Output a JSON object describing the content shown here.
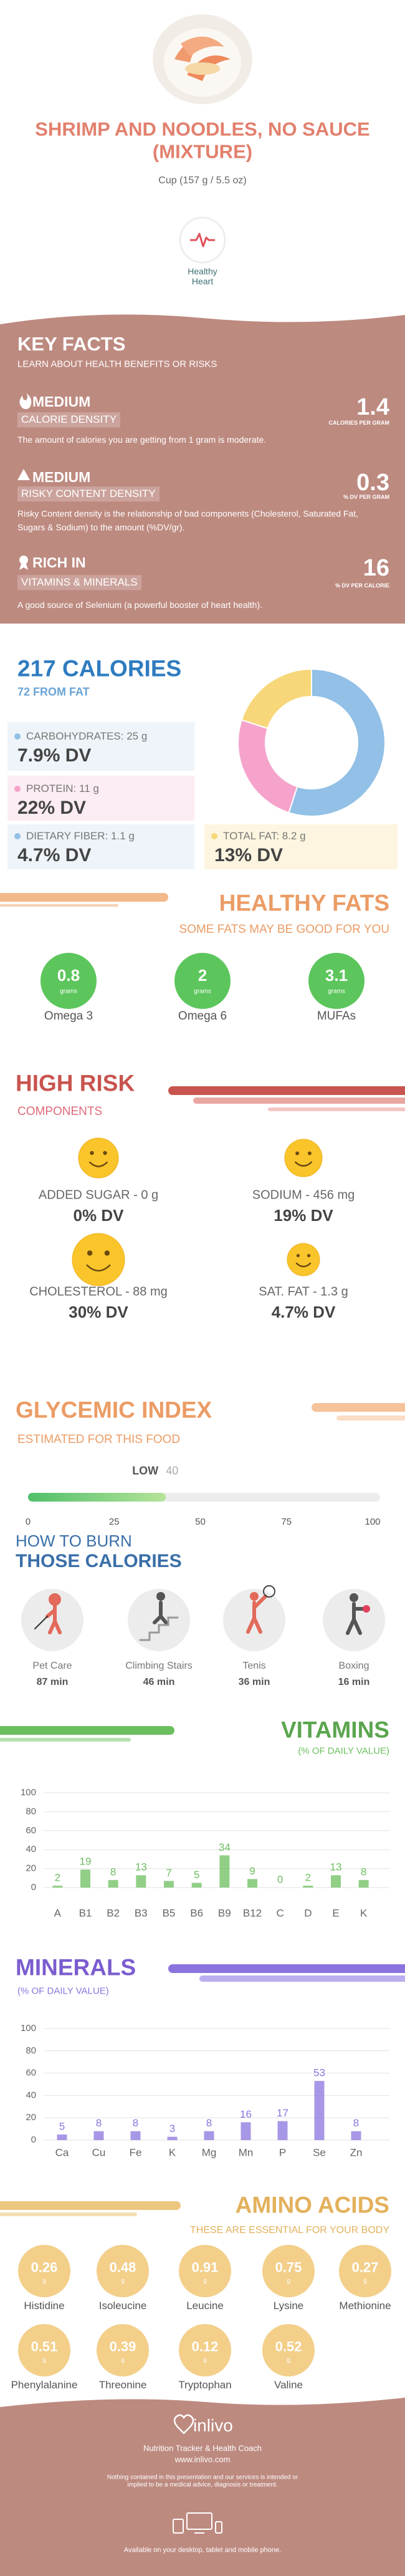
{
  "header": {
    "title": "SHRIMP AND NOODLES, NO SAUCE (MIXTURE)",
    "serving": "Cup (157 g / 5.5 oz)",
    "badge": "Healthy Heart"
  },
  "key_facts": {
    "title": "KEY FACTS",
    "subtitle": "LEARN ABOUT HEALTH BENEFITS OR RISKS",
    "items": [
      {
        "level": "MEDIUM",
        "name": "CALORIE DENSITY",
        "value": 1.4,
        "unit": "CALORIES PER GRAM",
        "description": "The amount of calories you are getting from 1 gram is moderate."
      },
      {
        "level": "MEDIUM",
        "name": "RISKY CONTENT DENSITY",
        "value": 0.3,
        "unit": "% DV PER GRAM",
        "description": "Risky Content density is the relationship of bad components (Cholesterol, Saturated Fat, Sugars & Sodium) to the amount (%DV/gr)."
      },
      {
        "level": "RICH IN",
        "name": "VITAMINS & MINERALS",
        "value": 16,
        "unit": "% DV PER CALORIE",
        "description": "A good source of Selenium (a powerful booster of heart health)."
      }
    ]
  },
  "calories": {
    "title": "217 CALORIES",
    "subtitle": "72 FROM FAT",
    "nutrients": [
      {
        "label": "CARBOHYDRATES: 25 g",
        "dv": "7.9% DV"
      },
      {
        "label": "PROTEIN: 11 g",
        "dv": "22% DV"
      },
      {
        "label": "DIETARY FIBER: 1.1 g",
        "dv": "4.7% DV"
      },
      {
        "label": "TOTAL FAT: 8.2 g",
        "dv": "13% DV"
      }
    ],
    "donut": {
      "values": [
        55,
        25,
        20
      ],
      "colors": [
        "#92c0e6",
        "#f5a3cb",
        "#f8d77a"
      ]
    }
  },
  "healthy_fats": {
    "title": "HEALTHY FATS",
    "subtitle": "SOME FATS MAY BE GOOD FOR YOU",
    "unit": "grams",
    "items": [
      {
        "name": "Omega 3",
        "value": 0.8
      },
      {
        "name": "Omega 6",
        "value": 2
      },
      {
        "name": "MUFAs",
        "value": 3.1
      }
    ]
  },
  "high_risk": {
    "title": "HIGH RISK",
    "subtitle": "COMPONENTS",
    "items": [
      {
        "label": "ADDED SUGAR - 0 g",
        "dv": "0% DV"
      },
      {
        "label": "SODIUM - 456 mg",
        "dv": "19% DV"
      },
      {
        "label": "CHOLESTEROL - 88 mg",
        "dv": "30% DV"
      },
      {
        "label": "SAT. FAT - 1.3 g",
        "dv": "4.7% DV"
      }
    ]
  },
  "glycemic_index": {
    "title": "GLYCEMIC INDEX",
    "subtitle": "ESTIMATED FOR THIS FOOD",
    "level": "LOW",
    "value": 40,
    "xlim": [
      0,
      100
    ],
    "xticks": [
      0,
      25,
      50,
      75,
      100
    ]
  },
  "burn": {
    "title": "HOW TO BURN",
    "subtitle": "THOSE CALORIES",
    "items": [
      {
        "name": "Pet Care",
        "time": "87 min"
      },
      {
        "name": "Climbing Stairs",
        "time": "46 min"
      },
      {
        "name": "Tenis",
        "time": "36 min"
      },
      {
        "name": "Boxing",
        "time": "16 min"
      }
    ]
  },
  "chart_data": [
    {
      "type": "bar",
      "title": "VITAMINS",
      "subtitle": "(% OF DAILY VALUE)",
      "color": "#6cbf5f",
      "categories": [
        "A",
        "B1",
        "B2",
        "B3",
        "B5",
        "B6",
        "B9",
        "B12",
        "C",
        "D",
        "E",
        "K"
      ],
      "values": [
        2,
        19,
        8,
        13,
        7,
        5,
        34,
        9,
        0,
        2,
        13,
        8
      ],
      "ylim": [
        0,
        100
      ],
      "yticks": [
        0,
        20,
        40,
        60,
        80,
        100
      ],
      "grid": true
    },
    {
      "type": "bar",
      "title": "MINERALS",
      "subtitle": "(% OF DAILY VALUE)",
      "color": "#8b74de",
      "categories": [
        "Ca",
        "Cu",
        "Fe",
        "K",
        "Mg",
        "Mn",
        "P",
        "Se",
        "Zn"
      ],
      "values": [
        5,
        8,
        8,
        3,
        8,
        16,
        17,
        53,
        8
      ],
      "ylim": [
        0,
        100
      ],
      "yticks": [
        0,
        20,
        40,
        60,
        80,
        100
      ],
      "grid": true
    }
  ],
  "amino_acids": {
    "title": "AMINO ACIDS",
    "subtitle": "THESE ARE ESSENTIAL FOR YOUR BODY",
    "unit": "g",
    "items": [
      {
        "name": "Histidine",
        "value": 0.26
      },
      {
        "name": "Isoleucine",
        "value": 0.48
      },
      {
        "name": "Leucine",
        "value": 0.91
      },
      {
        "name": "Lysine",
        "value": 0.75
      },
      {
        "name": "Methionine",
        "value": 0.27
      },
      {
        "name": "Phenylalanine",
        "value": 0.51
      },
      {
        "name": "Threonine",
        "value": 0.39
      },
      {
        "name": "Tryptophan",
        "value": 0.12
      },
      {
        "name": "Valine",
        "value": 0.52
      }
    ]
  },
  "footer": {
    "brand": "inlivo",
    "tagline": "Nutrition Tracker & Health Coach",
    "url": "www.inlivo.com",
    "disclaimer": "Nothing contained in this presentation and our services is intended or implied to be a medical advice, diagnosis or treatment.",
    "availability": "Available on your desktop, tablet and mobile phone."
  }
}
